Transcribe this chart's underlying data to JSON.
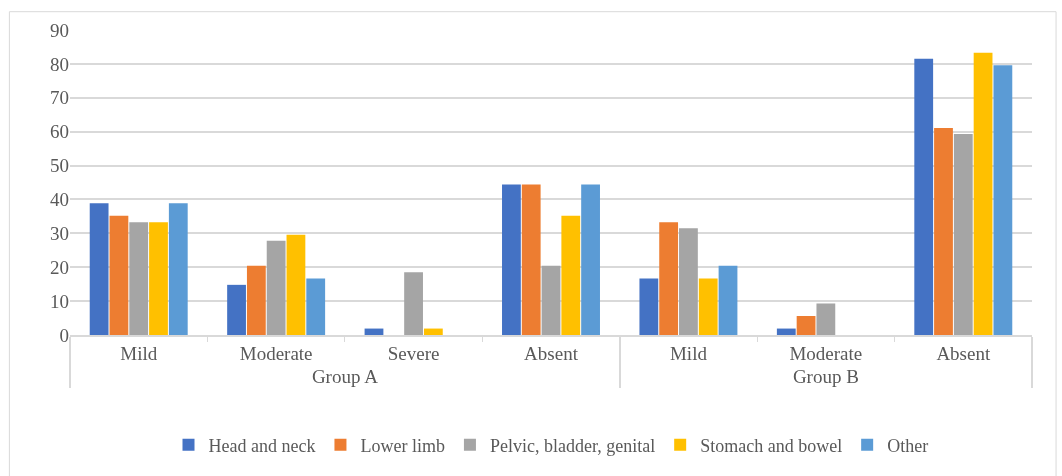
{
  "chart_data": {
    "type": "bar",
    "categories": [
      "Mild",
      "Moderate",
      "Severe",
      "Absent",
      "Mild",
      "Moderate",
      "Absent"
    ],
    "annotations": [
      "Group A",
      "Group B"
    ],
    "series": [
      {
        "name": "Head and neck",
        "color": "#4472c4",
        "values": [
          38.9,
          14.8,
          1.9,
          44.4,
          16.7,
          1.9,
          81.5
        ]
      },
      {
        "name": "Lower limb",
        "color": "#ed7d31",
        "values": [
          35.2,
          20.4,
          0,
          44.4,
          33.3,
          5.6,
          61.1
        ]
      },
      {
        "name": "Pelvic, bladder, genital",
        "color": "#a5a5a5",
        "values": [
          33.3,
          27.8,
          18.5,
          20.4,
          31.5,
          9.3,
          59.3
        ]
      },
      {
        "name": "Stomach and bowel",
        "color": "#ffc000",
        "values": [
          33.3,
          29.6,
          1.9,
          35.2,
          16.7,
          0,
          83.3
        ]
      },
      {
        "name": "Other",
        "color": "#5b9bd5",
        "values": [
          38.9,
          16.7,
          0,
          44.4,
          20.4,
          0,
          79.6
        ]
      }
    ],
    "ylim": [
      0,
      90
    ],
    "yticks": [
      0,
      10,
      20,
      30,
      40,
      50,
      60,
      70,
      80,
      90
    ],
    "grid": "y",
    "legend": "bottom"
  }
}
